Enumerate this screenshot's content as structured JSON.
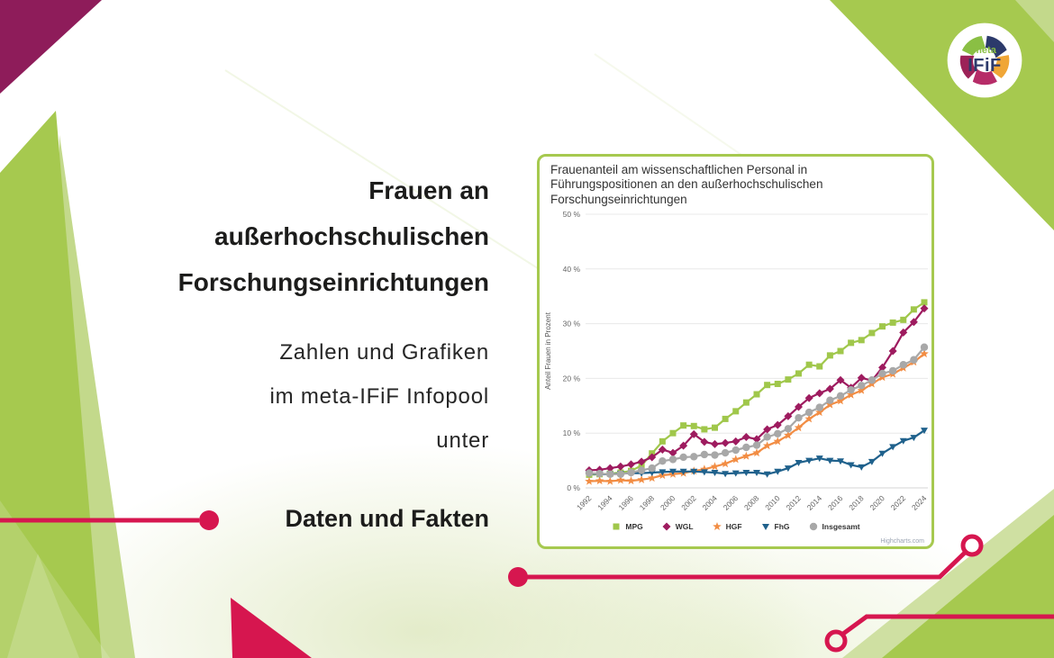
{
  "slide": {
    "title_lines": [
      "Frauen an",
      "außerhochschulischen",
      "Forschungseinrichtungen"
    ],
    "subtitle_lines": [
      "Zahlen und Grafiken",
      "im meta-IFiF Infopool",
      "unter"
    ],
    "cta": "Daten und Fakten"
  },
  "logo": {
    "top": "meta",
    "main": "IFiF",
    "petal_colors": [
      "#2c3a6b",
      "#f0a636",
      "#b62c68",
      "#9c2258",
      "#8abf44"
    ]
  },
  "theme": {
    "lime": "#a6c94f",
    "lime_light": "#c3d98b",
    "lime_pale": "#cfe0a2",
    "magenta_dark": "#8e1c5a",
    "crimson": "#d6164f",
    "navy": "#2c3a6b",
    "logo_green": "#8abf44",
    "ink": "#1c1c1b"
  },
  "chart_data": {
    "type": "line",
    "title": "Frauenanteil am wissenschaftlichen Personal in Führungspositionen an den außerhochschulischen Forschungseinrichtungen",
    "ylabel": "Anteil Frauen in Prozent",
    "ylim": [
      0,
      50
    ],
    "ytick_step": 10,
    "ytick_suffix": " %",
    "grid": true,
    "legend_position": "bottom",
    "credit": "Highcharts.com",
    "x": [
      1992,
      1993,
      1994,
      1995,
      1996,
      1997,
      1998,
      1999,
      2000,
      2001,
      2002,
      2003,
      2004,
      2005,
      2006,
      2007,
      2008,
      2009,
      2010,
      2011,
      2012,
      2013,
      2014,
      2015,
      2016,
      2017,
      2018,
      2019,
      2020,
      2021,
      2022,
      2023,
      2024
    ],
    "xtick_labels": [
      "1992",
      "1994",
      "1996",
      "1998",
      "2000",
      "2002",
      "2004",
      "2006",
      "2008",
      "2010",
      "2012",
      "2014",
      "2016",
      "2018",
      "2020",
      "2022",
      "2024"
    ],
    "series": [
      {
        "name": "MPG",
        "color": "#a0c74b",
        "symbol": "square",
        "values": [
          2.4,
          2.5,
          2.6,
          2.8,
          3.1,
          4.1,
          6.3,
          8.5,
          10.0,
          11.4,
          11.3,
          10.7,
          11.0,
          12.6,
          14.0,
          15.6,
          17.1,
          18.8,
          19.0,
          19.8,
          20.9,
          22.5,
          22.2,
          24.2,
          25.0,
          26.5,
          27.0,
          28.3,
          29.5,
          30.2,
          30.7,
          32.6,
          33.9
        ]
      },
      {
        "name": "WGL",
        "color": "#9e1b5f",
        "symbol": "diamond",
        "values": [
          3.2,
          3.3,
          3.6,
          3.9,
          4.3,
          4.8,
          5.6,
          7.0,
          6.4,
          7.7,
          9.8,
          8.4,
          8.0,
          8.2,
          8.5,
          9.3,
          8.9,
          10.7,
          11.5,
          13.1,
          14.8,
          16.4,
          17.3,
          18.1,
          19.7,
          18.3,
          20.1,
          19.6,
          22.0,
          25.0,
          28.4,
          30.3,
          32.8
        ]
      },
      {
        "name": "HGF",
        "color": "#f28d44",
        "symbol": "star",
        "values": [
          1.2,
          1.3,
          1.2,
          1.4,
          1.3,
          1.5,
          1.8,
          2.3,
          2.5,
          2.7,
          3.1,
          3.4,
          3.9,
          4.4,
          5.2,
          5.8,
          6.4,
          7.7,
          8.5,
          9.6,
          11.0,
          12.6,
          13.8,
          15.2,
          15.9,
          17.0,
          17.8,
          19.0,
          20.2,
          20.8,
          21.9,
          23.0,
          24.5
        ]
      },
      {
        "name": "FhG",
        "color": "#1f618c",
        "symbol": "triangle-down",
        "values": [
          2.6,
          2.5,
          2.5,
          2.6,
          2.7,
          2.7,
          2.8,
          2.9,
          3.0,
          3.0,
          3.0,
          2.9,
          2.8,
          2.6,
          2.7,
          2.8,
          2.8,
          2.5,
          3.0,
          3.6,
          4.6,
          5.0,
          5.4,
          5.0,
          4.9,
          4.2,
          3.8,
          4.8,
          6.3,
          7.5,
          8.6,
          9.2,
          10.5
        ]
      },
      {
        "name": "Insgesamt",
        "color": "#a8a8a8",
        "symbol": "circle",
        "values": [
          2.7,
          2.6,
          2.5,
          2.5,
          2.8,
          3.2,
          3.6,
          4.9,
          5.2,
          5.6,
          5.7,
          6.1,
          6.0,
          6.4,
          6.9,
          7.4,
          7.8,
          9.3,
          9.9,
          10.8,
          12.8,
          13.8,
          14.7,
          16.0,
          16.8,
          17.9,
          18.7,
          19.7,
          20.9,
          21.4,
          22.5,
          23.4,
          25.7
        ]
      }
    ]
  }
}
